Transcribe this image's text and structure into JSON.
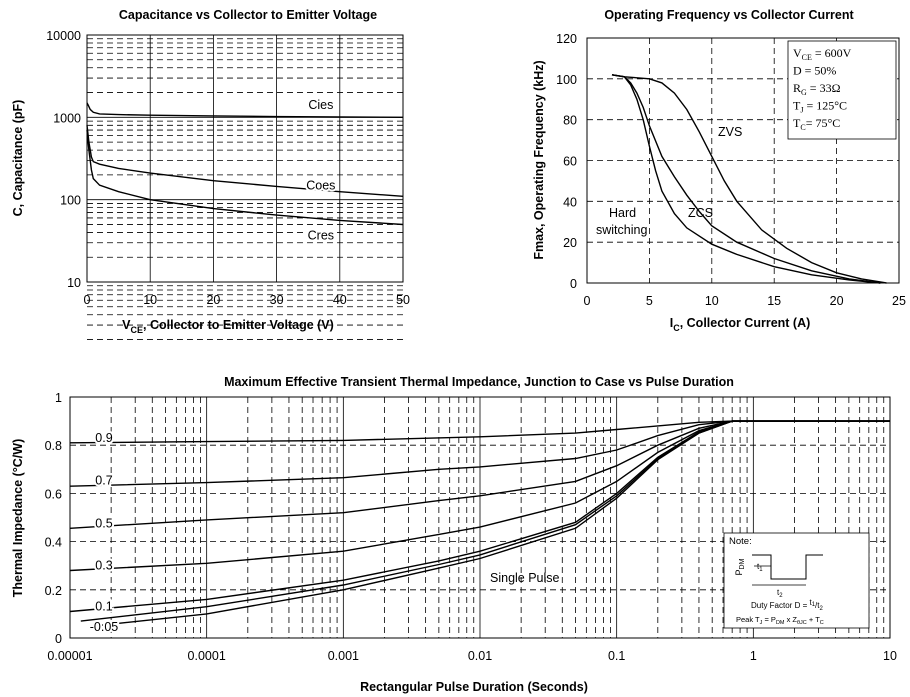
{
  "chart_data": [
    {
      "id": "cap",
      "type": "line",
      "title": "Capacitance vs Collector to Emitter Voltage",
      "xlabel": "Collector to Emitter Voltage (V)",
      "xlabel_symbol": "V",
      "xlabel_sub": "CE",
      "ylabel": "C, Capacitance (pF)",
      "xlim": [
        0,
        50
      ],
      "ylim": [
        10,
        10000
      ],
      "y_scale": "log",
      "xticks": [
        0,
        10,
        20,
        30,
        40,
        50
      ],
      "yticks": [
        10,
        100,
        1000,
        10000
      ],
      "ytick_labels": [
        "10",
        "100",
        "1000",
        "10000"
      ],
      "grid": true,
      "series": [
        {
          "name": "Cies",
          "x": [
            0,
            0.2,
            0.5,
            1,
            2,
            5,
            10,
            20,
            30,
            40,
            50
          ],
          "y": [
            1500,
            1400,
            1250,
            1150,
            1100,
            1080,
            1060,
            1040,
            1020,
            1010,
            1000
          ]
        },
        {
          "name": "Coes",
          "x": [
            0,
            0.3,
            0.7,
            1,
            2,
            5,
            10,
            20,
            30,
            40,
            50
          ],
          "y": [
            800,
            500,
            330,
            290,
            270,
            240,
            210,
            170,
            145,
            125,
            110
          ]
        },
        {
          "name": "Cres",
          "x": [
            0,
            0.3,
            0.7,
            1,
            2,
            5,
            10,
            20,
            30,
            40,
            50
          ],
          "y": [
            700,
            400,
            230,
            180,
            150,
            125,
            100,
            78,
            65,
            56,
            50
          ]
        }
      ]
    },
    {
      "id": "freq",
      "type": "line",
      "title": "Operating Frequency vs Collector Current",
      "xlabel": "Collector Current (A)",
      "xlabel_symbol": "I",
      "xlabel_sub": "C",
      "ylabel": "Fmax, Operating Frequency (kHz)",
      "xlim": [
        0,
        25
      ],
      "ylim": [
        0,
        120
      ],
      "xticks": [
        0,
        5,
        10,
        15,
        20,
        25
      ],
      "yticks": [
        0,
        20,
        40,
        60,
        80,
        100,
        120
      ],
      "grid": true,
      "series": [
        {
          "name": "Hard switching",
          "x": [
            2,
            3,
            3.5,
            4,
            4.5,
            5,
            5.5,
            6,
            7,
            8,
            10,
            12,
            15,
            18,
            21,
            23.5
          ],
          "y": [
            102,
            101,
            97,
            90,
            80,
            67,
            55,
            45,
            34,
            27,
            19,
            14,
            8,
            4,
            1.5,
            0
          ]
        },
        {
          "name": "ZCS",
          "x": [
            2,
            3,
            3.5,
            4,
            4.5,
            5,
            6,
            7,
            8,
            9,
            10,
            12,
            15,
            18,
            21,
            23.5
          ],
          "y": [
            102,
            101,
            98,
            93,
            86,
            77,
            62,
            52,
            43,
            35,
            28,
            20,
            12,
            6,
            2,
            0
          ]
        },
        {
          "name": "ZVS",
          "x": [
            2,
            3,
            4,
            5,
            6,
            7,
            8,
            9,
            10,
            11,
            12,
            14,
            16,
            18,
            20,
            22,
            24
          ],
          "y": [
            102,
            101,
            100.5,
            100,
            98,
            93,
            85,
            74,
            62,
            50,
            40,
            26,
            17,
            10,
            5,
            2,
            0
          ]
        }
      ],
      "legend_box": {
        "lines": [
          {
            "sym": "V",
            "sub": "CE",
            "rest": " = 600V"
          },
          {
            "sym": "D = 50%",
            "sub": "",
            "rest": ""
          },
          {
            "sym": "R",
            "sub": "G",
            "rest": " = 33Ω"
          },
          {
            "sym": "T",
            "sub": "J",
            "rest": " = 125°C"
          },
          {
            "sym": "T",
            "sub": "C",
            "rest": "= 75°C"
          }
        ]
      },
      "annotations": [
        "ZVS",
        "ZCS",
        "Hard",
        "switching"
      ]
    },
    {
      "id": "therm",
      "type": "line",
      "title": "Maximum Effective Transient Thermal Impedance, Junction to Case vs Pulse Duration",
      "xlabel": "Rectangular Pulse Duration (Seconds)",
      "ylabel": "Thermal Impedance (°C/W)",
      "xlim": [
        1e-05,
        10
      ],
      "x_scale": "log",
      "ylim": [
        0,
        1
      ],
      "xticks": [
        1e-05,
        0.0001,
        0.001,
        0.01,
        0.1,
        1,
        10
      ],
      "xtick_labels": [
        "0.00001",
        "0.0001",
        "0.001",
        "0.01",
        "0.1",
        "1",
        "10"
      ],
      "yticks": [
        0,
        0.2,
        0.4,
        0.6,
        0.8,
        1
      ],
      "ytick_labels": [
        "0",
        "0.2",
        "0.4",
        "0.6",
        "0.8",
        "1"
      ],
      "grid": true,
      "series": [
        {
          "name": "0.9",
          "x": [
            1e-05,
            0.0001,
            0.001,
            0.01,
            0.05,
            0.1,
            0.2,
            0.4,
            0.7,
            1,
            10
          ],
          "y": [
            0.81,
            0.815,
            0.82,
            0.835,
            0.85,
            0.865,
            0.88,
            0.895,
            0.9,
            0.9,
            0.9
          ]
        },
        {
          "name": "0.7",
          "x": [
            1e-05,
            0.0001,
            0.001,
            0.005,
            0.01,
            0.05,
            0.1,
            0.2,
            0.4,
            0.7,
            1,
            10
          ],
          "y": [
            0.63,
            0.645,
            0.665,
            0.7,
            0.71,
            0.745,
            0.78,
            0.84,
            0.885,
            0.9,
            0.9,
            0.9
          ]
        },
        {
          "name": "0.5",
          "x": [
            1e-05,
            0.0001,
            0.001,
            0.005,
            0.01,
            0.05,
            0.1,
            0.2,
            0.4,
            0.7,
            1,
            10
          ],
          "y": [
            0.455,
            0.49,
            0.52,
            0.57,
            0.59,
            0.65,
            0.715,
            0.8,
            0.87,
            0.9,
            0.9,
            0.9
          ]
        },
        {
          "name": "0.3",
          "x": [
            1e-05,
            0.0001,
            0.001,
            0.005,
            0.01,
            0.05,
            0.1,
            0.2,
            0.4,
            0.7,
            1,
            10
          ],
          "y": [
            0.28,
            0.31,
            0.36,
            0.43,
            0.46,
            0.56,
            0.65,
            0.77,
            0.86,
            0.9,
            0.9,
            0.9
          ]
        },
        {
          "name": "0.1",
          "x": [
            1e-05,
            0.0001,
            0.001,
            0.005,
            0.01,
            0.05,
            0.1,
            0.2,
            0.4,
            0.7,
            1,
            10
          ],
          "y": [
            0.11,
            0.16,
            0.24,
            0.32,
            0.36,
            0.48,
            0.6,
            0.75,
            0.855,
            0.9,
            0.9,
            0.9
          ]
        },
        {
          "name": "0.05",
          "x": [
            1.2e-05,
            0.0001,
            0.001,
            0.005,
            0.01,
            0.05,
            0.1,
            0.2,
            0.4,
            0.7,
            1,
            10
          ],
          "y": [
            0.07,
            0.13,
            0.22,
            0.305,
            0.345,
            0.47,
            0.59,
            0.745,
            0.85,
            0.9,
            0.9,
            0.9
          ]
        },
        {
          "name": "Single Pulse",
          "x": [
            1.5e-05,
            0.0001,
            0.001,
            0.005,
            0.01,
            0.05,
            0.1,
            0.2,
            0.4,
            0.7,
            1,
            10
          ],
          "y": [
            0.05,
            0.1,
            0.2,
            0.29,
            0.33,
            0.455,
            0.58,
            0.74,
            0.85,
            0.9,
            0.9,
            0.9
          ]
        }
      ],
      "curve_labels": [
        "0.9",
        "0.7",
        "0.5",
        "0.3",
        "0.1",
        "-0.05"
      ],
      "annotation_single_pulse": "Single Pulse",
      "note": {
        "title": "Note:",
        "pdm_sym": "P",
        "pdm_sub": "DM",
        "t1_label": "t",
        "t1_sub": "1",
        "t2_label": "t",
        "t2_sub": "2",
        "duty_line_prefix": "Duty Factor  D = ",
        "duty_num": "t",
        "duty_num_sub": "1",
        "duty_den": "t",
        "duty_den_sub": "2",
        "peak_line_prefix": "Peak T",
        "peak_line_sub": "J",
        "peak_line_mid": " = P",
        "peak_line_sub2": "DM",
        "peak_line_mid2": " x Z",
        "peak_line_sub3": "θJC",
        "peak_line_end": " + T",
        "peak_line_sub4": "C"
      }
    }
  ]
}
